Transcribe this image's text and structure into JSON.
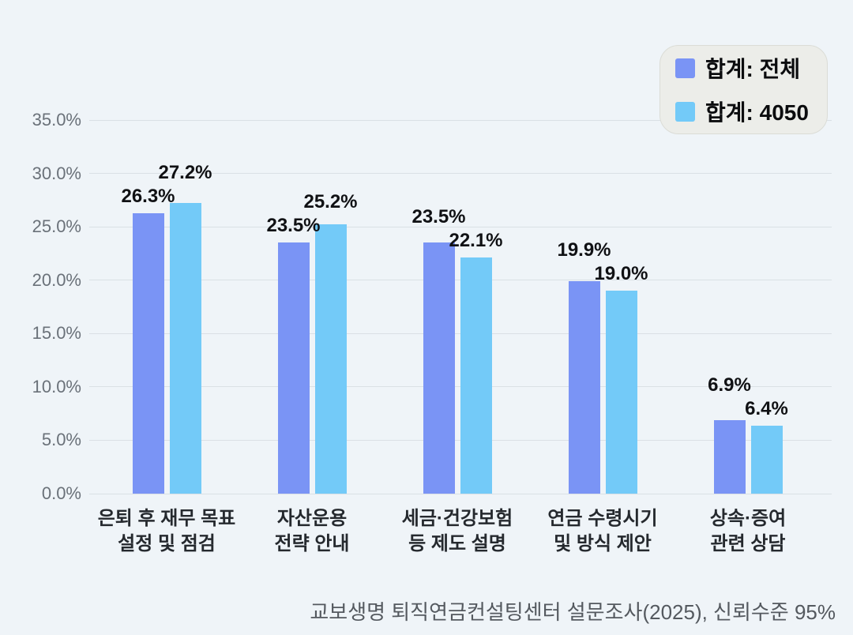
{
  "chart_data": {
    "type": "bar",
    "title": "",
    "categories": [
      "은퇴 후 재무 목표\n설정 및 점검",
      "자산운용\n전략 안내",
      "세금·건강보험\n등 제도 설명",
      "연금 수령시기\n및 방식 제안",
      "상속·증여\n관련 상담"
    ],
    "series": [
      {
        "name": "합계: 전체",
        "color": "#7A94F5",
        "values": [
          26.3,
          23.5,
          23.5,
          19.9,
          6.9
        ]
      },
      {
        "name": "합계: 4050",
        "color": "#73CAF8",
        "values": [
          27.2,
          25.2,
          22.1,
          19.0,
          6.4
        ]
      }
    ],
    "xlabel": "",
    "ylabel": "",
    "ylim": [
      0,
      35
    ],
    "ytick_step": 5,
    "ytick_labels": [
      "0.0%",
      "5.0%",
      "10.0%",
      "15.0%",
      "20.0%",
      "25.0%",
      "30.0%",
      "35.0%"
    ],
    "grid": true,
    "legend_position": "top-right",
    "value_labels": true,
    "value_label_format": "one-decimal-percent"
  },
  "colors": {
    "background": "#EFF4F8",
    "gridline": "#DAE0E5",
    "series_all": "#7A94F5",
    "series_4050": "#73CAF8",
    "legend_background": "#ECEDE9",
    "axis_text": "#6A7179",
    "label_text": "#101114",
    "footer_text": "#54595F"
  },
  "footer": {
    "source_note": "교보생명 퇴직연금컨설팅센터 설문조사(2025), 신뢰수준 95%"
  }
}
